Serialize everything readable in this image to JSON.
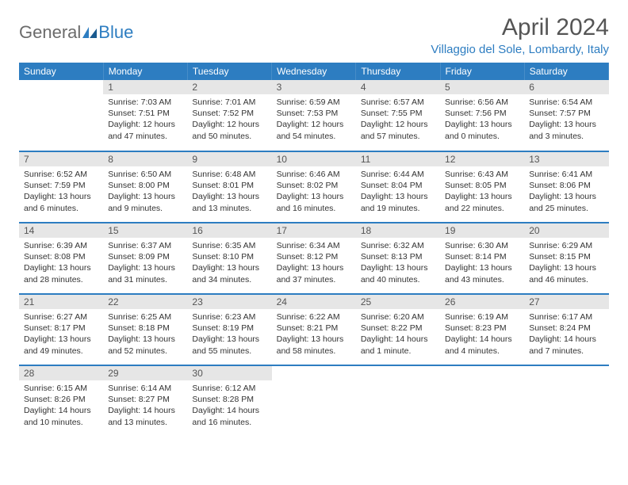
{
  "logo": {
    "text1": "General",
    "text2": "Blue"
  },
  "title": "April 2024",
  "location": "Villaggio del Sole, Lombardy, Italy",
  "colors": {
    "accent": "#2d7dc1",
    "header_bg": "#2d7dc1",
    "header_text": "#ffffff",
    "daynum_bg": "#e6e6e6",
    "body_text": "#333333",
    "logo_gray": "#6b6b6b"
  },
  "day_headers": [
    "Sunday",
    "Monday",
    "Tuesday",
    "Wednesday",
    "Thursday",
    "Friday",
    "Saturday"
  ],
  "weeks": [
    [
      null,
      {
        "n": "1",
        "sunrise": "7:03 AM",
        "sunset": "7:51 PM",
        "daylight": "12 hours and 47 minutes."
      },
      {
        "n": "2",
        "sunrise": "7:01 AM",
        "sunset": "7:52 PM",
        "daylight": "12 hours and 50 minutes."
      },
      {
        "n": "3",
        "sunrise": "6:59 AM",
        "sunset": "7:53 PM",
        "daylight": "12 hours and 54 minutes."
      },
      {
        "n": "4",
        "sunrise": "6:57 AM",
        "sunset": "7:55 PM",
        "daylight": "12 hours and 57 minutes."
      },
      {
        "n": "5",
        "sunrise": "6:56 AM",
        "sunset": "7:56 PM",
        "daylight": "13 hours and 0 minutes."
      },
      {
        "n": "6",
        "sunrise": "6:54 AM",
        "sunset": "7:57 PM",
        "daylight": "13 hours and 3 minutes."
      }
    ],
    [
      {
        "n": "7",
        "sunrise": "6:52 AM",
        "sunset": "7:59 PM",
        "daylight": "13 hours and 6 minutes."
      },
      {
        "n": "8",
        "sunrise": "6:50 AM",
        "sunset": "8:00 PM",
        "daylight": "13 hours and 9 minutes."
      },
      {
        "n": "9",
        "sunrise": "6:48 AM",
        "sunset": "8:01 PM",
        "daylight": "13 hours and 13 minutes."
      },
      {
        "n": "10",
        "sunrise": "6:46 AM",
        "sunset": "8:02 PM",
        "daylight": "13 hours and 16 minutes."
      },
      {
        "n": "11",
        "sunrise": "6:44 AM",
        "sunset": "8:04 PM",
        "daylight": "13 hours and 19 minutes."
      },
      {
        "n": "12",
        "sunrise": "6:43 AM",
        "sunset": "8:05 PM",
        "daylight": "13 hours and 22 minutes."
      },
      {
        "n": "13",
        "sunrise": "6:41 AM",
        "sunset": "8:06 PM",
        "daylight": "13 hours and 25 minutes."
      }
    ],
    [
      {
        "n": "14",
        "sunrise": "6:39 AM",
        "sunset": "8:08 PM",
        "daylight": "13 hours and 28 minutes."
      },
      {
        "n": "15",
        "sunrise": "6:37 AM",
        "sunset": "8:09 PM",
        "daylight": "13 hours and 31 minutes."
      },
      {
        "n": "16",
        "sunrise": "6:35 AM",
        "sunset": "8:10 PM",
        "daylight": "13 hours and 34 minutes."
      },
      {
        "n": "17",
        "sunrise": "6:34 AM",
        "sunset": "8:12 PM",
        "daylight": "13 hours and 37 minutes."
      },
      {
        "n": "18",
        "sunrise": "6:32 AM",
        "sunset": "8:13 PM",
        "daylight": "13 hours and 40 minutes."
      },
      {
        "n": "19",
        "sunrise": "6:30 AM",
        "sunset": "8:14 PM",
        "daylight": "13 hours and 43 minutes."
      },
      {
        "n": "20",
        "sunrise": "6:29 AM",
        "sunset": "8:15 PM",
        "daylight": "13 hours and 46 minutes."
      }
    ],
    [
      {
        "n": "21",
        "sunrise": "6:27 AM",
        "sunset": "8:17 PM",
        "daylight": "13 hours and 49 minutes."
      },
      {
        "n": "22",
        "sunrise": "6:25 AM",
        "sunset": "8:18 PM",
        "daylight": "13 hours and 52 minutes."
      },
      {
        "n": "23",
        "sunrise": "6:23 AM",
        "sunset": "8:19 PM",
        "daylight": "13 hours and 55 minutes."
      },
      {
        "n": "24",
        "sunrise": "6:22 AM",
        "sunset": "8:21 PM",
        "daylight": "13 hours and 58 minutes."
      },
      {
        "n": "25",
        "sunrise": "6:20 AM",
        "sunset": "8:22 PM",
        "daylight": "14 hours and 1 minute."
      },
      {
        "n": "26",
        "sunrise": "6:19 AM",
        "sunset": "8:23 PM",
        "daylight": "14 hours and 4 minutes."
      },
      {
        "n": "27",
        "sunrise": "6:17 AM",
        "sunset": "8:24 PM",
        "daylight": "14 hours and 7 minutes."
      }
    ],
    [
      {
        "n": "28",
        "sunrise": "6:15 AM",
        "sunset": "8:26 PM",
        "daylight": "14 hours and 10 minutes."
      },
      {
        "n": "29",
        "sunrise": "6:14 AM",
        "sunset": "8:27 PM",
        "daylight": "14 hours and 13 minutes."
      },
      {
        "n": "30",
        "sunrise": "6:12 AM",
        "sunset": "8:28 PM",
        "daylight": "14 hours and 16 minutes."
      },
      null,
      null,
      null,
      null
    ]
  ],
  "labels": {
    "sunrise": "Sunrise:",
    "sunset": "Sunset:",
    "daylight": "Daylight:"
  }
}
